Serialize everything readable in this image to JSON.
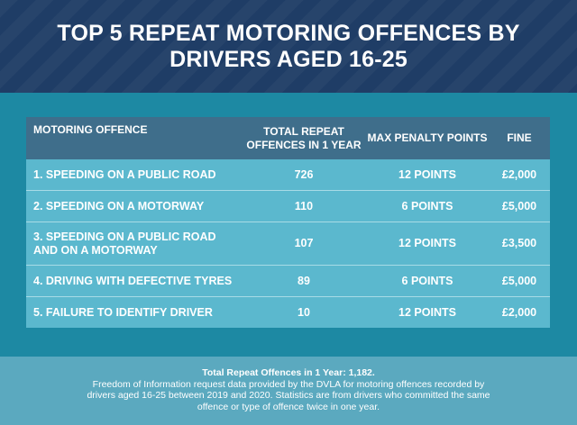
{
  "title": "TOP 5 REPEAT MOTORING OFFENCES BY DRIVERS AGED 16-25",
  "table": {
    "headers": {
      "offence": "MOTORING OFFENCE",
      "total": "TOTAL REPEAT OFFENCES IN 1 YEAR",
      "penalty": "MAX PENALTY POINTS",
      "fine": "FINE"
    },
    "rows": [
      {
        "offence": "1. SPEEDING ON A PUBLIC ROAD",
        "total": "726",
        "penalty": "12 POINTS",
        "fine": "£2,000"
      },
      {
        "offence": "2. SPEEDING ON A MOTORWAY",
        "total": "110",
        "penalty": "6 POINTS",
        "fine": "£5,000"
      },
      {
        "offence": "3. SPEEDING ON A PUBLIC ROAD AND ON A MOTORWAY",
        "total": "107",
        "penalty": "12 POINTS",
        "fine": "£3,500"
      },
      {
        "offence": "4. DRIVING WITH DEFECTIVE TYRES",
        "total": "89",
        "penalty": "6 POINTS",
        "fine": "£5,000"
      },
      {
        "offence": "5. FAILURE TO IDENTIFY DRIVER",
        "total": "10",
        "penalty": "12 POINTS",
        "fine": "£2,000"
      }
    ]
  },
  "footer": {
    "total": "Total Repeat Offences in 1 Year: 1,182.",
    "note": "Freedom of Information request data provided by the DVLA for motoring offences recorded by drivers aged 16-25 between 2019 and 2020. Statistics are from drivers who committed the same offence or type of offence twice in one year."
  }
}
